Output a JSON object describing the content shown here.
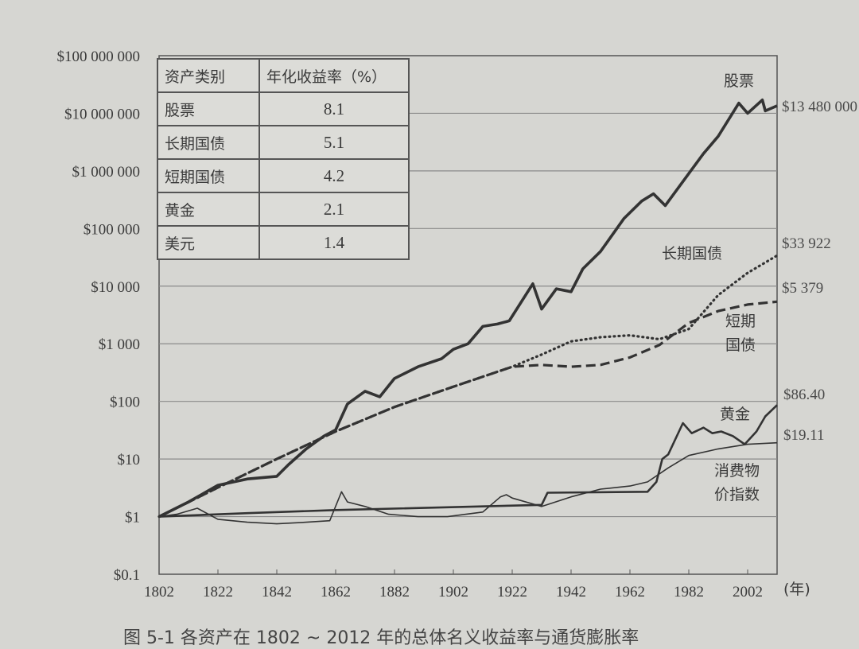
{
  "chart_data": {
    "type": "line",
    "caption": "图 5-1 各资产在 1802 ~ 2012 年的总体名义收益率与通货膨胀率",
    "x_unit": "(年)",
    "y_scale": "log",
    "ylim": [
      0.1,
      100000000
    ],
    "xlim": [
      1802,
      2012
    ],
    "y_ticks": [
      "$0.1",
      "$1",
      "$10",
      "$100",
      "$1 000",
      "$10 000",
      "$100 000",
      "$1 000 000",
      "$10 000 000",
      "$100 000 000"
    ],
    "x_ticks": [
      "1802",
      "1822",
      "1842",
      "1862",
      "1882",
      "1902",
      "1922",
      "1942",
      "1962",
      "1982",
      "2002"
    ],
    "grid": "horizontal",
    "table": {
      "headers": [
        "资产类别",
        "年化收益率（%）"
      ],
      "rows": [
        [
          "股票",
          "8.1"
        ],
        [
          "长期国债",
          "5.1"
        ],
        [
          "短期国债",
          "4.2"
        ],
        [
          "黄金",
          "2.1"
        ],
        [
          "美元",
          "1.4"
        ]
      ]
    },
    "series": [
      {
        "name": "股票",
        "end_label": "$13 480 000",
        "style": "solid-thick",
        "points": [
          [
            1802,
            1
          ],
          [
            1812,
            1.8
          ],
          [
            1822,
            3.5
          ],
          [
            1832,
            4.5
          ],
          [
            1842,
            5
          ],
          [
            1846,
            8
          ],
          [
            1852,
            15
          ],
          [
            1858,
            25
          ],
          [
            1862,
            32
          ],
          [
            1866,
            90
          ],
          [
            1872,
            150
          ],
          [
            1877,
            120
          ],
          [
            1882,
            250
          ],
          [
            1890,
            400
          ],
          [
            1898,
            550
          ],
          [
            1902,
            800
          ],
          [
            1907,
            1000
          ],
          [
            1912,
            2000
          ],
          [
            1917,
            2200
          ],
          [
            1921,
            2500
          ],
          [
            1929,
            11000
          ],
          [
            1932,
            4000
          ],
          [
            1937,
            9000
          ],
          [
            1942,
            8000
          ],
          [
            1946,
            20000
          ],
          [
            1952,
            40000
          ],
          [
            1960,
            150000
          ],
          [
            1966,
            300000
          ],
          [
            1970,
            400000
          ],
          [
            1974,
            250000
          ],
          [
            1982,
            900000
          ],
          [
            1987,
            2000000
          ],
          [
            1992,
            4000000
          ],
          [
            1999,
            15000000
          ],
          [
            2002,
            10000000
          ],
          [
            2007,
            17000000
          ],
          [
            2008,
            11000000
          ],
          [
            2012,
            13480000
          ]
        ]
      },
      {
        "name": "长期国债",
        "end_label": "$33 922",
        "style": "dotted",
        "points": [
          [
            1802,
            1
          ],
          [
            1822,
            3.2
          ],
          [
            1842,
            10
          ],
          [
            1862,
            30
          ],
          [
            1882,
            80
          ],
          [
            1902,
            180
          ],
          [
            1922,
            400
          ],
          [
            1932,
            650
          ],
          [
            1942,
            1100
          ],
          [
            1952,
            1300
          ],
          [
            1962,
            1400
          ],
          [
            1972,
            1200
          ],
          [
            1982,
            1800
          ],
          [
            1992,
            7000
          ],
          [
            2002,
            17000
          ],
          [
            2012,
            33922
          ]
        ]
      },
      {
        "name": "短期国债",
        "end_label": "$5 379",
        "style": "dashed",
        "points": [
          [
            1802,
            1
          ],
          [
            1822,
            3.2
          ],
          [
            1842,
            10
          ],
          [
            1862,
            30
          ],
          [
            1882,
            80
          ],
          [
            1902,
            180
          ],
          [
            1922,
            400
          ],
          [
            1932,
            430
          ],
          [
            1942,
            400
          ],
          [
            1952,
            430
          ],
          [
            1962,
            580
          ],
          [
            1972,
            950
          ],
          [
            1982,
            2300
          ],
          [
            1992,
            3700
          ],
          [
            2002,
            4800
          ],
          [
            2012,
            5379
          ]
        ]
      },
      {
        "name": "黄金",
        "end_label": "$86.40",
        "style": "solid-medium",
        "points": [
          [
            1802,
            1
          ],
          [
            1832,
            1.15
          ],
          [
            1862,
            1.3
          ],
          [
            1932,
            1.6
          ],
          [
            1934,
            2.6
          ],
          [
            1968,
            2.7
          ],
          [
            1971,
            4
          ],
          [
            1973,
            10
          ],
          [
            1975,
            12
          ],
          [
            1980,
            42
          ],
          [
            1983,
            28
          ],
          [
            1987,
            35
          ],
          [
            1990,
            28
          ],
          [
            1993,
            30
          ],
          [
            1997,
            25
          ],
          [
            2001,
            18
          ],
          [
            2005,
            30
          ],
          [
            2008,
            55
          ],
          [
            2012,
            86.4
          ]
        ]
      },
      {
        "name": "消费物价指数",
        "end_label": "$19.11",
        "style": "solid-thin",
        "points": [
          [
            1802,
            1
          ],
          [
            1808,
            1.1
          ],
          [
            1815,
            1.4
          ],
          [
            1822,
            0.9
          ],
          [
            1832,
            0.8
          ],
          [
            1842,
            0.75
          ],
          [
            1852,
            0.8
          ],
          [
            1860,
            0.85
          ],
          [
            1864,
            2.7
          ],
          [
            1866,
            1.8
          ],
          [
            1872,
            1.5
          ],
          [
            1880,
            1.1
          ],
          [
            1890,
            1.0
          ],
          [
            1900,
            1.0
          ],
          [
            1912,
            1.2
          ],
          [
            1918,
            2.2
          ],
          [
            1920,
            2.4
          ],
          [
            1922,
            2.1
          ],
          [
            1932,
            1.5
          ],
          [
            1942,
            2.2
          ],
          [
            1952,
            3.0
          ],
          [
            1962,
            3.4
          ],
          [
            1968,
            4
          ],
          [
            1975,
            7
          ],
          [
            1982,
            11.5
          ],
          [
            1992,
            15
          ],
          [
            2002,
            18
          ],
          [
            2012,
            19.11
          ]
        ]
      }
    ],
    "colors": {
      "line": "#333333",
      "grid": "#8a8a8a",
      "background": "#d6d6d2"
    }
  }
}
